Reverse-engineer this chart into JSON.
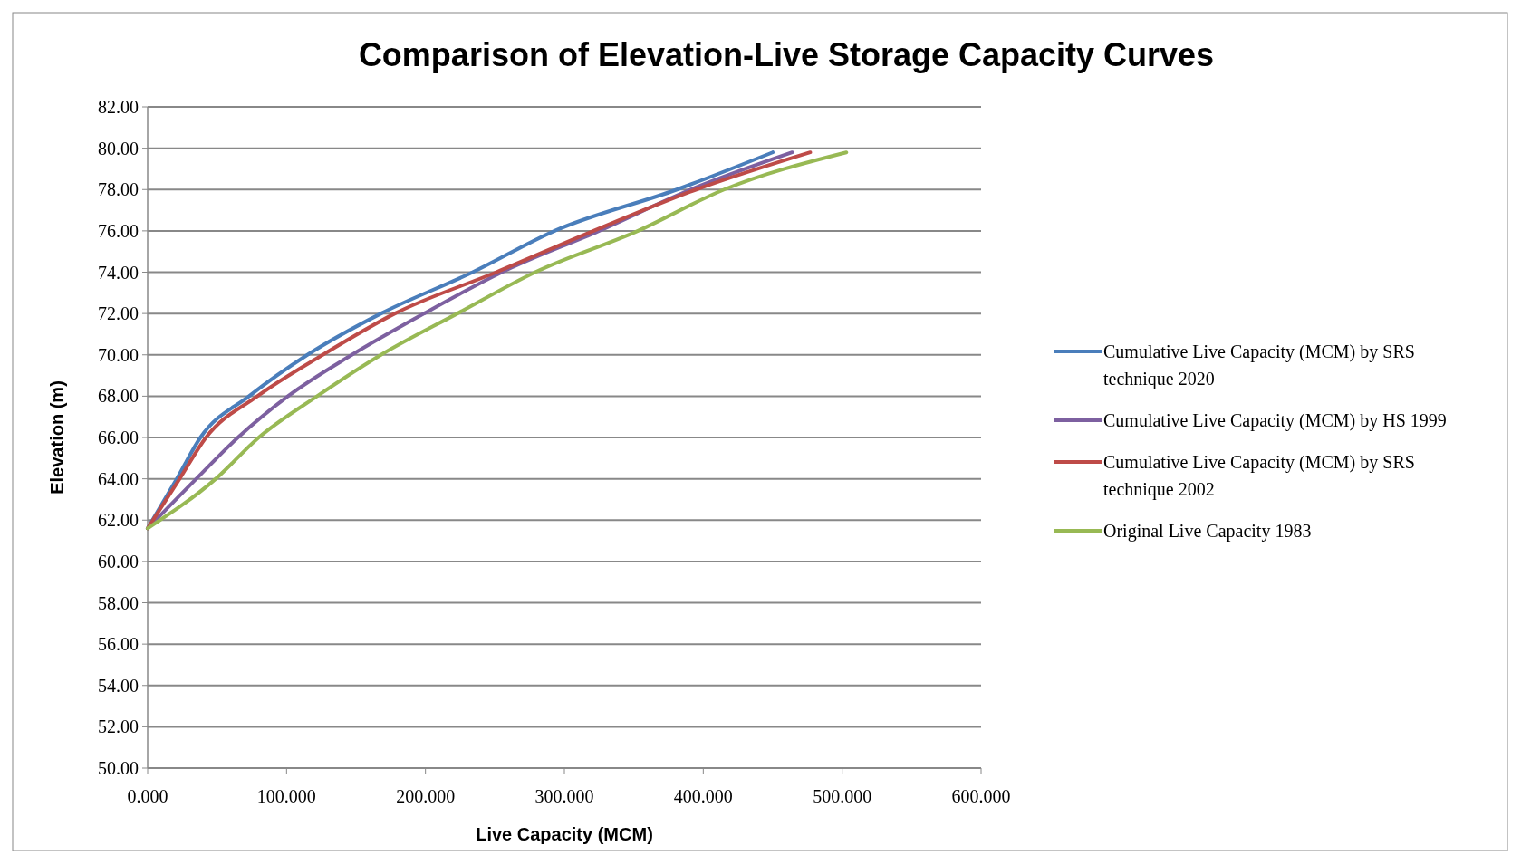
{
  "chart_data": {
    "type": "line",
    "title": "Comparison of Elevation-Live Storage Capacity Curves",
    "xlabel": "Live Capacity (MCM)",
    "ylabel": "Elevation (m)",
    "xlim": [
      0,
      600
    ],
    "xticks": [
      {
        "value": 0,
        "label": "0.000"
      },
      {
        "value": 100,
        "label": "100.000"
      },
      {
        "value": 200,
        "label": "200.000"
      },
      {
        "value": 300,
        "label": "300.000"
      },
      {
        "value": 400,
        "label": "400.000"
      },
      {
        "value": 500,
        "label": "500.000"
      },
      {
        "value": 600,
        "label": "600.000"
      }
    ],
    "ylim": [
      50,
      82
    ],
    "yticks": [
      {
        "value": 50,
        "label": "50.00"
      },
      {
        "value": 52,
        "label": "52.00"
      },
      {
        "value": 54,
        "label": "54.00"
      },
      {
        "value": 56,
        "label": "56.00"
      },
      {
        "value": 58,
        "label": "58.00"
      },
      {
        "value": 60,
        "label": "60.00"
      },
      {
        "value": 62,
        "label": "62.00"
      },
      {
        "value": 64,
        "label": "64.00"
      },
      {
        "value": 66,
        "label": "66.00"
      },
      {
        "value": 68,
        "label": "68.00"
      },
      {
        "value": 70,
        "label": "70.00"
      },
      {
        "value": 72,
        "label": "72.00"
      },
      {
        "value": 74,
        "label": "74.00"
      },
      {
        "value": 76,
        "label": "76.00"
      },
      {
        "value": 78,
        "label": "78.00"
      },
      {
        "value": 80,
        "label": "80.00"
      },
      {
        "value": 82,
        "label": "82.00"
      }
    ],
    "grid": "y",
    "legend": "right",
    "line_style": "solid",
    "series": [
      {
        "name": "Cumulative Live Capacity (MCM) by SRS technique 2020",
        "color": "#4a7ebb",
        "x": [
          0,
          21,
          38,
          73,
          115,
          168,
          234,
          293,
          381,
          450
        ],
        "values": [
          61.6,
          64,
          66,
          68,
          70,
          72,
          74,
          76,
          78,
          79.8
        ]
      },
      {
        "name": "Cumulative Live Capacity (MCM) by HS 1999",
        "color": "#7d60a0",
        "x": [
          0,
          35,
          65,
          101,
          147,
          199,
          255,
          325,
          391,
          464
        ],
        "values": [
          61.6,
          64,
          66,
          68,
          70,
          72,
          74,
          76,
          78,
          79.8
        ]
      },
      {
        "name": "Cumulative Live Capacity (MCM) by SRS technique 2002",
        "color": "#be4b48",
        "x": [
          0,
          23,
          42,
          79,
          126,
          178,
          251,
          321,
          395,
          477
        ],
        "values": [
          61.6,
          64,
          66,
          68,
          70,
          72,
          74,
          76,
          78,
          79.8
        ]
      },
      {
        "name": "Original Live Capacity 1983",
        "color": "#98b954",
        "x": [
          0,
          49,
          80,
          122,
          168,
          223,
          279,
          353,
          415,
          503
        ],
        "values": [
          61.6,
          64,
          66,
          68,
          70,
          72,
          74,
          76,
          78,
          79.8
        ]
      }
    ]
  }
}
